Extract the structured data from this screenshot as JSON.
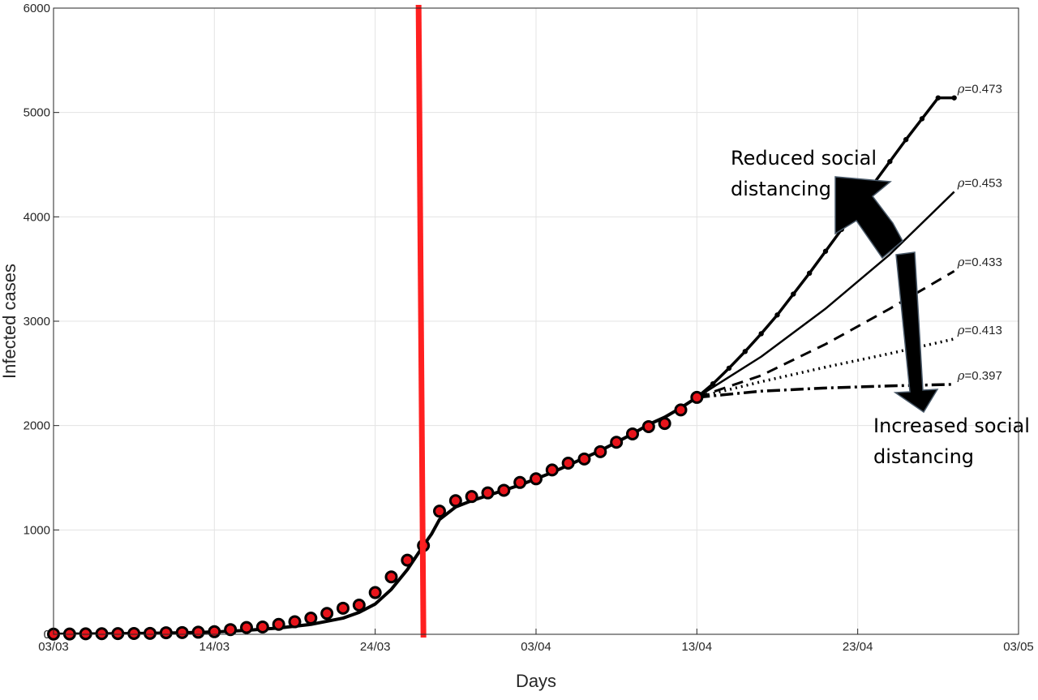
{
  "chart_data": {
    "type": "line",
    "xlabel": "Days",
    "ylabel": "Infected cases",
    "x_ticks": [
      "03/03",
      "14/03",
      "24/03",
      "03/04",
      "13/04",
      "23/04",
      "03/05"
    ],
    "x_tick_days": [
      0,
      10,
      20,
      30,
      40,
      50,
      60
    ],
    "y_ticks": [
      "0",
      "1000",
      "2000",
      "3000",
      "4000",
      "5000",
      "6000"
    ],
    "xlim": [
      "03/03",
      "03/05"
    ],
    "ylim": [
      0,
      6000
    ],
    "grid": true,
    "vertical_line": {
      "day": 23,
      "color": "#ff2020"
    },
    "observed": {
      "color": "#e8141b",
      "days": [
        0,
        1,
        2,
        3,
        4,
        5,
        6,
        7,
        8,
        9,
        10,
        11,
        12,
        13,
        14,
        15,
        16,
        17,
        18,
        19,
        20,
        21,
        22,
        23,
        24,
        25,
        26,
        27,
        28,
        29,
        30,
        31,
        32,
        33,
        34,
        35,
        36,
        37,
        38,
        39,
        40
      ],
      "cases": [
        2,
        3,
        5,
        6,
        7,
        8,
        9,
        15,
        17,
        20,
        25,
        45,
        65,
        70,
        95,
        120,
        155,
        200,
        250,
        280,
        400,
        550,
        710,
        850,
        1180,
        1280,
        1320,
        1355,
        1380,
        1455,
        1490,
        1575,
        1640,
        1680,
        1750,
        1840,
        1920,
        1990,
        2020,
        2150,
        2270
      ]
    },
    "fit_curve": {
      "days": [
        0,
        2,
        4,
        6,
        8,
        10,
        12,
        14,
        16,
        18,
        19,
        20,
        21,
        22,
        23,
        23.5,
        24,
        25,
        26,
        27,
        28,
        29,
        30,
        31,
        32,
        33,
        34,
        35,
        36,
        37,
        38,
        39,
        40
      ],
      "cases": [
        0,
        3,
        6,
        10,
        15,
        22,
        38,
        60,
        95,
        155,
        210,
        290,
        430,
        620,
        850,
        960,
        1100,
        1220,
        1280,
        1330,
        1380,
        1430,
        1490,
        1550,
        1620,
        1690,
        1760,
        1840,
        1920,
        2010,
        2080,
        2170,
        2270
      ]
    },
    "series": [
      {
        "name": "ρ=0.473",
        "label_rho": "ρ",
        "label_value": "=0.473",
        "style": "solid-dots",
        "days": [
          40,
          41,
          42,
          43,
          44,
          45,
          46,
          47,
          48,
          49,
          50,
          51,
          52,
          53,
          54,
          55,
          56
        ],
        "cases": [
          2270,
          2400,
          2550,
          2710,
          2880,
          3060,
          3260,
          3460,
          3670,
          3880,
          4100,
          4320,
          4530,
          4740,
          4940,
          5140,
          5140
        ]
      },
      {
        "name": "ρ=0.453",
        "label_rho": "ρ",
        "label_value": "=0.453",
        "style": "solid",
        "days": [
          40,
          44,
          48,
          52,
          56
        ],
        "cases": [
          2270,
          2660,
          3120,
          3640,
          4240
        ]
      },
      {
        "name": "ρ=0.433",
        "label_rho": "ρ",
        "label_value": "=0.433",
        "style": "dashed",
        "days": [
          40,
          44,
          48,
          52,
          56
        ],
        "cases": [
          2270,
          2480,
          2780,
          3120,
          3480
        ]
      },
      {
        "name": "ρ=0.413",
        "label_rho": "ρ",
        "label_value": "=0.413",
        "style": "dotted",
        "days": [
          40,
          44,
          48,
          52,
          56
        ],
        "cases": [
          2270,
          2420,
          2560,
          2690,
          2830
        ]
      },
      {
        "name": "ρ=0.397",
        "label_rho": "ρ",
        "label_value": "=0.397",
        "style": "dashdot",
        "days": [
          40,
          44,
          48,
          52,
          56
        ],
        "cases": [
          2270,
          2330,
          2360,
          2380,
          2395
        ]
      }
    ],
    "annotations": {
      "reduced_line1": "Reduced social",
      "reduced_line2": "distancing",
      "increased_line1": "Increased social",
      "increased_line2": "distancing"
    }
  }
}
